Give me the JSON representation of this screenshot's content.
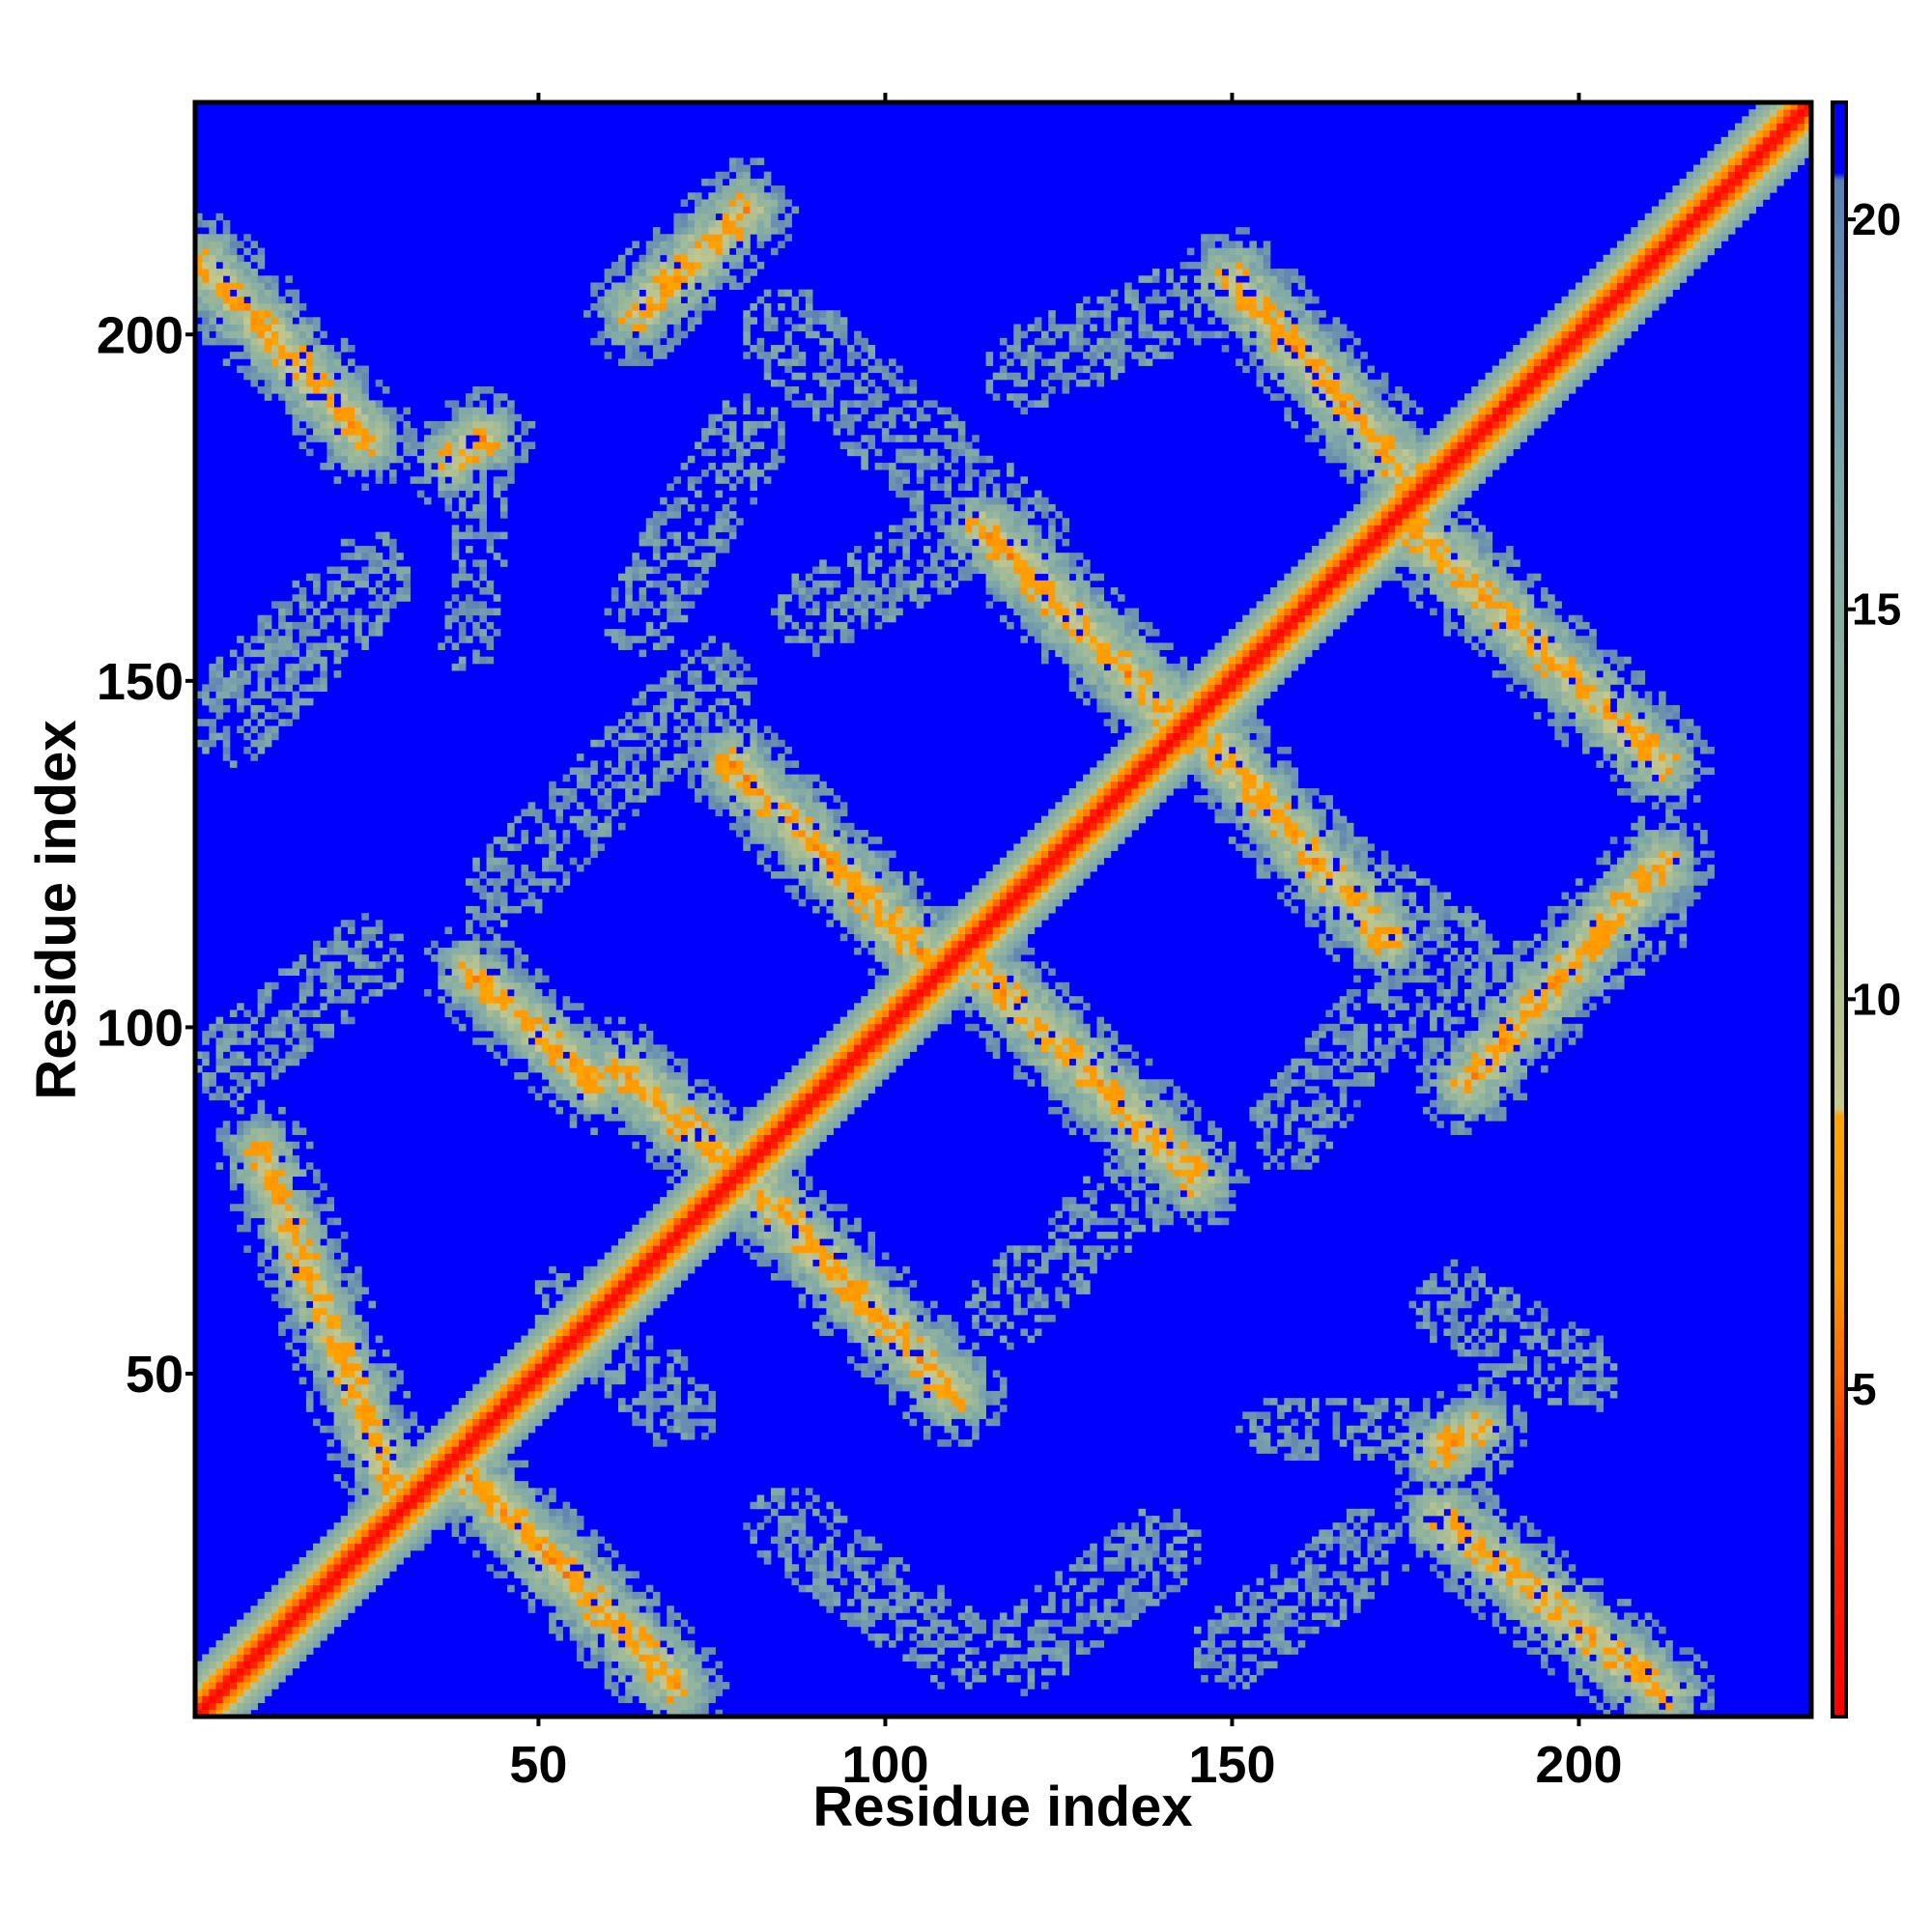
{
  "chart_data": {
    "type": "heatmap",
    "title": "",
    "xlabel": "Residue index",
    "ylabel": "Residue index",
    "xlim": [
      1,
      233
    ],
    "ylim": [
      1,
      233
    ],
    "x_ticks": [
      50,
      100,
      150,
      200
    ],
    "y_ticks": [
      50,
      100,
      150,
      200
    ],
    "colorbar": {
      "range": [
        0.8,
        21.5
      ],
      "ticks": [
        5,
        10,
        15,
        20
      ],
      "stops": [
        {
          "value": 0.8,
          "color": "#ff0000"
        },
        {
          "value": 4.0,
          "color": "#ff3300"
        },
        {
          "value": 6.5,
          "color": "#ff9900"
        },
        {
          "value": 8.5,
          "color": "#ffa500"
        },
        {
          "value": 8.6,
          "color": "#c8c88c"
        },
        {
          "value": 12.0,
          "color": "#9ab89a"
        },
        {
          "value": 16.5,
          "color": "#7fa8a8"
        },
        {
          "value": 20.5,
          "color": "#5a7fb4"
        },
        {
          "value": 20.6,
          "color": "#0000ff"
        },
        {
          "value": 21.5,
          "color": "#0000ff"
        }
      ]
    },
    "background_value": 21,
    "diagonal": {
      "core_halfwidth": 1.5,
      "halfwidth": 7
    },
    "contact_bands": [
      {
        "from": [
          10,
          82
        ],
        "to": [
          30,
          31
        ],
        "halfwidth": 4.5
      },
      {
        "from": [
          40,
          108
        ],
        "to": [
          58,
          92
        ],
        "halfwidth": 4.5
      },
      {
        "from": [
          62,
          94
        ],
        "to": [
          80,
          78
        ],
        "halfwidth": 5
      },
      {
        "from": [
          40,
          35
        ],
        "to": [
          70,
          5
        ],
        "halfwidth": 5
      },
      {
        "from": [
          82,
          76
        ],
        "to": [
          110,
          47
        ],
        "halfwidth": 5
      },
      {
        "from": [
          78,
          138
        ],
        "to": [
          108,
          108
        ],
        "halfwidth": 5
      },
      {
        "from": [
          114,
          108
        ],
        "to": [
          145,
          78
        ],
        "halfwidth": 5
      },
      {
        "from": [
          114,
          172
        ],
        "to": [
          144,
          142
        ],
        "halfwidth": 5
      },
      {
        "from": [
          148,
          140
        ],
        "to": [
          172,
          113
        ],
        "halfwidth": 5
      },
      {
        "from": [
          150,
          208
        ],
        "to": [
          175,
          180
        ],
        "halfwidth": 5
      },
      {
        "from": [
          176,
          172
        ],
        "to": [
          212,
          138
        ],
        "halfwidth": 5
      },
      {
        "from": [
          180,
          29
        ],
        "to": [
          212,
          4
        ],
        "halfwidth": 5
      },
      {
        "from": [
          2,
          210
        ],
        "to": [
          25,
          185
        ],
        "halfwidth": 5
      },
      {
        "from": [
          64,
          203
        ],
        "to": [
          80,
          218
        ],
        "halfwidth": 5
      },
      {
        "from": [
          184,
          92
        ],
        "to": [
          212,
          124
        ],
        "halfwidth": 5
      },
      {
        "from": [
          38,
          182
        ],
        "to": [
          42,
          185
        ],
        "halfwidth": 5
      },
      {
        "from": [
          180,
          39
        ],
        "to": [
          185,
          42
        ],
        "halfwidth": 5
      }
    ],
    "sparse_regions": [
      {
        "from": [
          6,
          145
        ],
        "to": [
          25,
          165
        ],
        "halfwidth": 7
      },
      {
        "from": [
          6,
          95
        ],
        "to": [
          25,
          110
        ],
        "halfwidth": 6
      },
      {
        "from": [
          55,
          60
        ],
        "to": [
          70,
          45
        ],
        "halfwidth": 6
      },
      {
        "from": [
          45,
          120
        ],
        "to": [
          75,
          150
        ],
        "halfwidth": 6
      },
      {
        "from": [
          65,
          160
        ],
        "to": [
          80,
          185
        ],
        "halfwidth": 6
      },
      {
        "from": [
          86,
          200
        ],
        "to": [
          120,
          170
        ],
        "halfwidth": 7
      },
      {
        "from": [
          120,
          195
        ],
        "to": [
          145,
          205
        ],
        "halfwidth": 6
      },
      {
        "from": [
          90,
          160
        ],
        "to": [
          110,
          170
        ],
        "halfwidth": 6
      },
      {
        "from": [
          118,
          60
        ],
        "to": [
          140,
          80
        ],
        "halfwidth": 6
      },
      {
        "from": [
          86,
          28
        ],
        "to": [
          110,
          10
        ],
        "halfwidth": 6
      },
      {
        "from": [
          120,
          10
        ],
        "to": [
          140,
          25
        ],
        "halfwidth": 6
      },
      {
        "from": [
          150,
          10
        ],
        "to": [
          170,
          25
        ],
        "halfwidth": 6
      },
      {
        "from": [
          158,
          85
        ],
        "to": [
          170,
          100
        ],
        "halfwidth": 6
      },
      {
        "from": [
          160,
          125
        ],
        "to": [
          182,
          110
        ],
        "halfwidth": 7
      },
      {
        "from": [
          180,
          100
        ],
        "to": [
          210,
          115
        ],
        "halfwidth": 6
      },
      {
        "from": [
          182,
          60
        ],
        "to": [
          200,
          50
        ],
        "halfwidth": 6
      },
      {
        "from": [
          155,
          42
        ],
        "to": [
          175,
          42
        ],
        "halfwidth": 4
      },
      {
        "from": [
          40,
          155
        ],
        "to": [
          42,
          175
        ],
        "halfwidth": 4
      }
    ]
  }
}
